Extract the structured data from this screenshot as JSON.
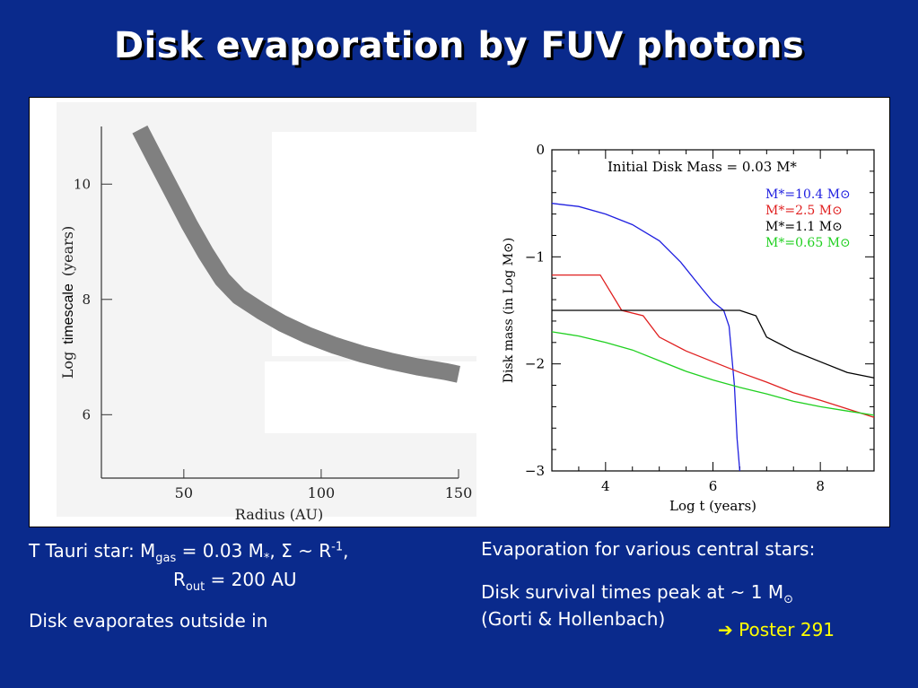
{
  "slide": {
    "title": "Disk evaporation by FUV photons",
    "left_text": {
      "line1_prefix": "T Tauri star: M",
      "line1_sub": "gas",
      "line1_mid": " = 0.03 M",
      "line1_star": "*",
      "line1_sigma": ", Σ ~ R",
      "line1_sup": "-1",
      "line1_end": ",",
      "line2_prefix": "R",
      "line2_sub": "out",
      "line2_end": " = 200 AU",
      "line3": "Disk evaporates outside in"
    },
    "right_text": {
      "line1": "Evaporation for various central stars:",
      "line2": "Disk survival times peak at ~ 1 M",
      "line2_sun": "⊙",
      "line3": "(Gorti & Hollenbach)",
      "poster_arrow": "➔",
      "poster": "Poster 291"
    },
    "colors": {
      "background": "#0a2a8c",
      "poster": "#ffff00"
    }
  },
  "chart_data": [
    {
      "type": "line",
      "xlabel": "Radius (AU)",
      "ylabel_parts": [
        "Log",
        "timescale",
        "(years)"
      ],
      "x_ticks": [
        50,
        100,
        150
      ],
      "y_ticks": [
        6,
        8,
        10
      ],
      "xlim": [
        20,
        150
      ],
      "ylim": [
        4.9,
        11
      ],
      "series": [
        {
          "color": "#808080",
          "x": [
            34,
            40,
            46,
            52,
            58,
            64,
            70,
            78,
            86,
            95,
            105,
            115,
            125,
            135,
            145,
            150
          ],
          "y": [
            10.95,
            10.4,
            9.85,
            9.3,
            8.8,
            8.35,
            8.05,
            7.8,
            7.58,
            7.38,
            7.2,
            7.05,
            6.93,
            6.83,
            6.75,
            6.7
          ]
        }
      ]
    },
    {
      "type": "line",
      "annotation": "Initial Disk Mass = 0.03 M*",
      "xlabel": "Log t (years)",
      "ylabel": "Disk mass (in Log M⊙)",
      "x_ticks": [
        4,
        6,
        8
      ],
      "y_ticks": [
        0,
        -1,
        -2,
        -3
      ],
      "xlim": [
        3,
        9
      ],
      "ylim": [
        -3,
        0
      ],
      "legend_placement": "top-right",
      "series": [
        {
          "name": "M*=10.4 M⊙",
          "color": "#2020e0",
          "x": [
            3,
            3.5,
            4,
            4.5,
            5,
            5.4,
            5.8,
            6.0,
            6.2,
            6.3,
            6.4,
            6.45,
            6.5
          ],
          "y": [
            -0.5,
            -0.53,
            -0.6,
            -0.7,
            -0.85,
            -1.05,
            -1.3,
            -1.42,
            -1.5,
            -1.65,
            -2.2,
            -2.7,
            -3.0
          ]
        },
        {
          "name": "M*=2.5 M⊙",
          "color": "#e02020",
          "x": [
            3,
            3.4,
            3.9,
            4.3,
            4.7,
            5.0,
            5.5,
            6.0,
            6.5,
            7.0,
            7.5,
            8.0,
            8.5,
            9.0
          ],
          "y": [
            -1.17,
            -1.17,
            -1.17,
            -1.5,
            -1.55,
            -1.75,
            -1.88,
            -1.98,
            -2.08,
            -2.17,
            -2.27,
            -2.34,
            -2.42,
            -2.5
          ]
        },
        {
          "name": "M*=1.1 M⊙",
          "color": "#000000",
          "x": [
            3,
            4,
            5,
            6,
            6.5,
            6.8,
            7.0,
            7.5,
            8.0,
            8.5,
            9.0
          ],
          "y": [
            -1.5,
            -1.5,
            -1.5,
            -1.5,
            -1.5,
            -1.55,
            -1.75,
            -1.88,
            -1.98,
            -2.08,
            -2.13
          ]
        },
        {
          "name": "M*=0.65 M⊙",
          "color": "#20d020",
          "x": [
            3,
            3.5,
            4,
            4.5,
            5,
            5.5,
            6,
            6.5,
            7,
            7.5,
            8,
            8.5,
            9
          ],
          "y": [
            -1.7,
            -1.74,
            -1.8,
            -1.87,
            -1.97,
            -2.07,
            -2.15,
            -2.22,
            -2.28,
            -2.35,
            -2.4,
            -2.44,
            -2.48
          ]
        }
      ]
    }
  ]
}
